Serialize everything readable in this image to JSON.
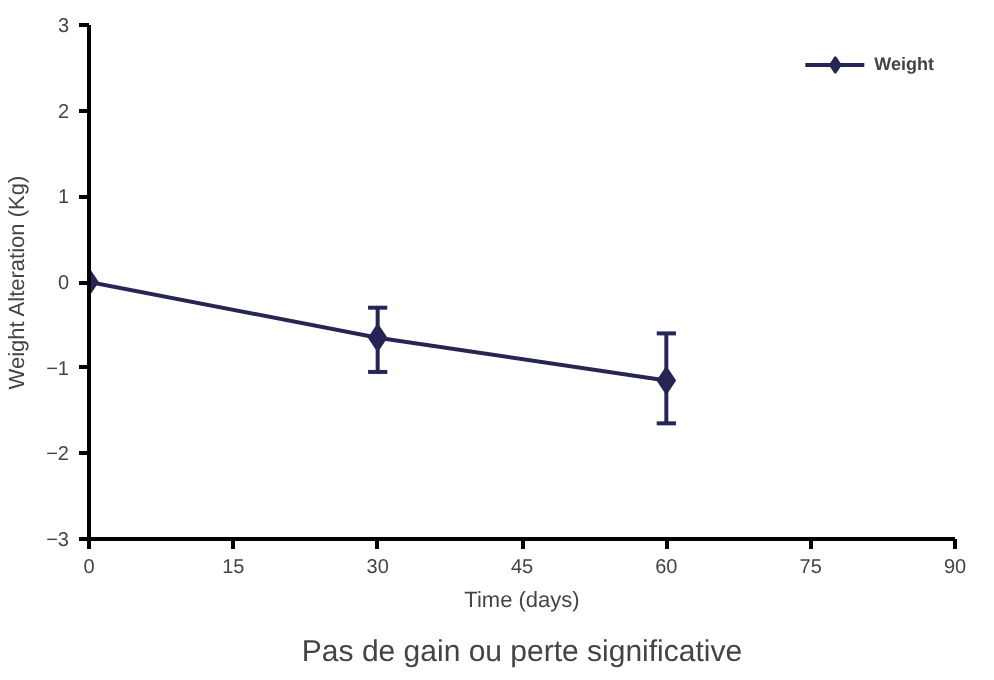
{
  "chart_data": {
    "type": "line",
    "xlabel": "Time (days)",
    "ylabel": "Weight Alteration (Kg)",
    "annotations": [
      "Pas de gain ou perte significative"
    ],
    "x": [
      0,
      30,
      60
    ],
    "series": [
      {
        "name": "Weight",
        "color": "#262655",
        "values": [
          0,
          -0.65,
          -1.15
        ],
        "errors": [
          null,
          [
            -1.05,
            -0.3
          ],
          [
            -1.65,
            -0.6
          ]
        ]
      }
    ],
    "xlim": [
      0,
      90
    ],
    "xticks": [
      0,
      15,
      30,
      45,
      60,
      75,
      90
    ],
    "ylim": [
      -3,
      3
    ],
    "yticks": [
      -3,
      -2,
      -1,
      0,
      1,
      2,
      3
    ],
    "grid": false,
    "legend": "top right",
    "marker": "diamond",
    "line_style": "solid"
  }
}
